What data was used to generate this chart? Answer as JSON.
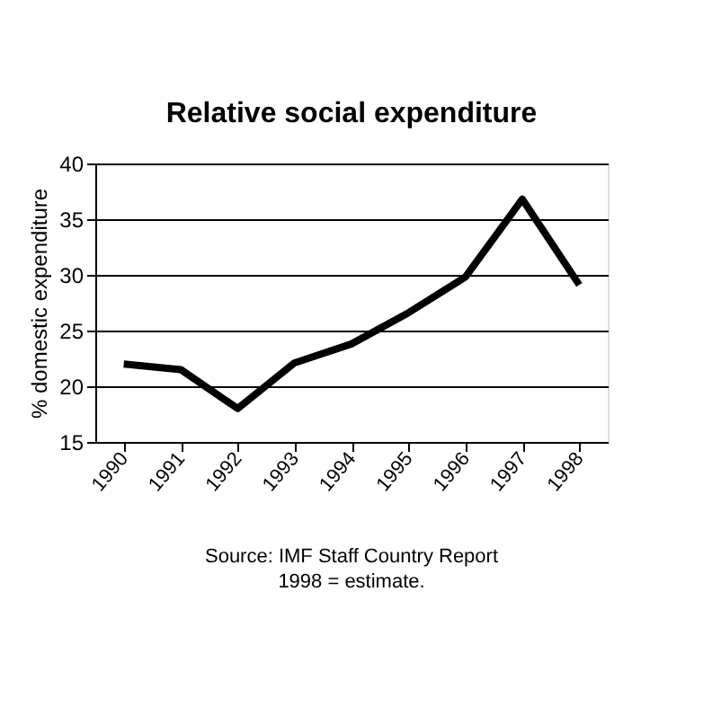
{
  "chart_data": {
    "type": "line",
    "title": "Relative social expenditure",
    "ylabel": "% domestic expenditure",
    "categories": [
      "1990",
      "1991",
      "1992",
      "1993",
      "1994",
      "1995",
      "1996",
      "1997",
      "1998"
    ],
    "series": [
      {
        "color": "#000000",
        "values": [
          22.0,
          21.5,
          18.0,
          22.1,
          23.8,
          26.6,
          29.8,
          36.8,
          29.1
        ]
      }
    ],
    "ylim": [
      15,
      40
    ],
    "yticks": [
      15,
      20,
      25,
      30,
      35,
      40
    ],
    "grid": "y",
    "marker": "none",
    "line_style": "solid",
    "annotations": [
      "Source: IMF Staff Country Report",
      "1998 = estimate."
    ]
  }
}
